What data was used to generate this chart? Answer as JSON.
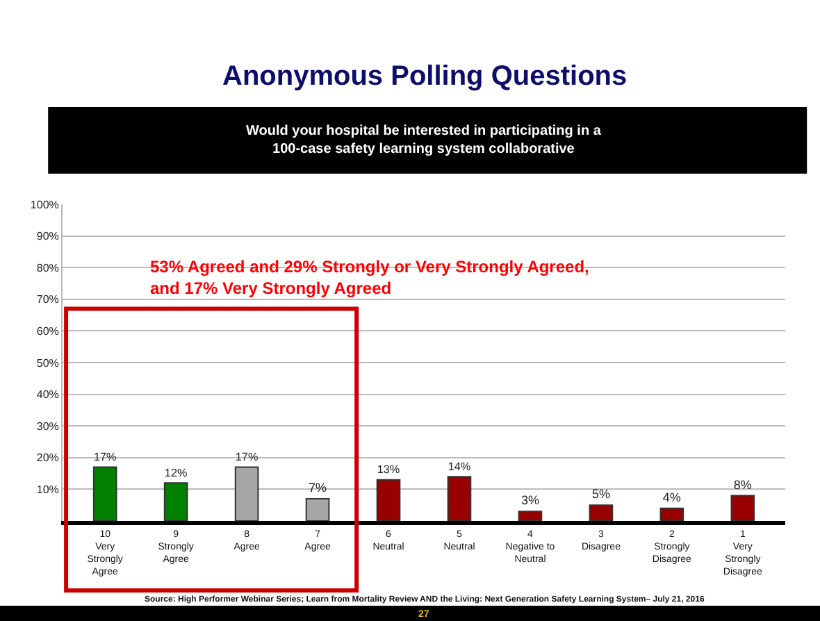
{
  "chart_data": {
    "type": "bar",
    "title": "Anonymous Polling Questions",
    "subtitle": "Would your hospital be interested in participating in a\n100-case safety learning system collaborative",
    "categories": [
      "10\nVery\nStrongly\nAgree",
      "9\nStrongly\nAgree",
      "8\nAgree",
      "7\nAgree",
      "6\nNeutral",
      "5\nNeutral",
      "4\nNegative to\nNeutral",
      "3\nDisagree",
      "2\nStrongly\nDisagree",
      "1\nVery\nStrongly\nDisagree"
    ],
    "values": [
      17,
      12,
      17,
      7,
      13,
      14,
      3,
      5,
      4,
      8
    ],
    "value_labels": [
      "17%",
      "12%",
      "17%",
      "7%",
      "13%",
      "14%",
      "3%",
      "5%",
      "4%",
      "8%"
    ],
    "colors": [
      "#008000",
      "#008000",
      "#a6a6a6",
      "#a6a6a6",
      "#990000",
      "#990000",
      "#990000",
      "#990000",
      "#990000",
      "#990000"
    ],
    "ylim": [
      0,
      100
    ],
    "yticks": [
      {
        "value": 10,
        "label": "10%"
      },
      {
        "value": 20,
        "label": "20%"
      },
      {
        "value": 30,
        "label": "30%"
      },
      {
        "value": 40,
        "label": "40%"
      },
      {
        "value": 50,
        "label": "50%"
      },
      {
        "value": 60,
        "label": "60%"
      },
      {
        "value": 70,
        "label": "70%"
      },
      {
        "value": 80,
        "label": "80%"
      },
      {
        "value": 90,
        "label": "90%"
      },
      {
        "value": 100,
        "label": "100%"
      }
    ],
    "grid": "y",
    "annotations": [
      "53% Agreed and 29% Strongly or Very Strongly Agreed,\nand 17% Very Strongly Agreed",
      "Source: High Performer Webinar Series; Learn from Mortality Review AND the Living: Next Generation Safety Learning System– July 21, 2016",
      "27"
    ]
  }
}
